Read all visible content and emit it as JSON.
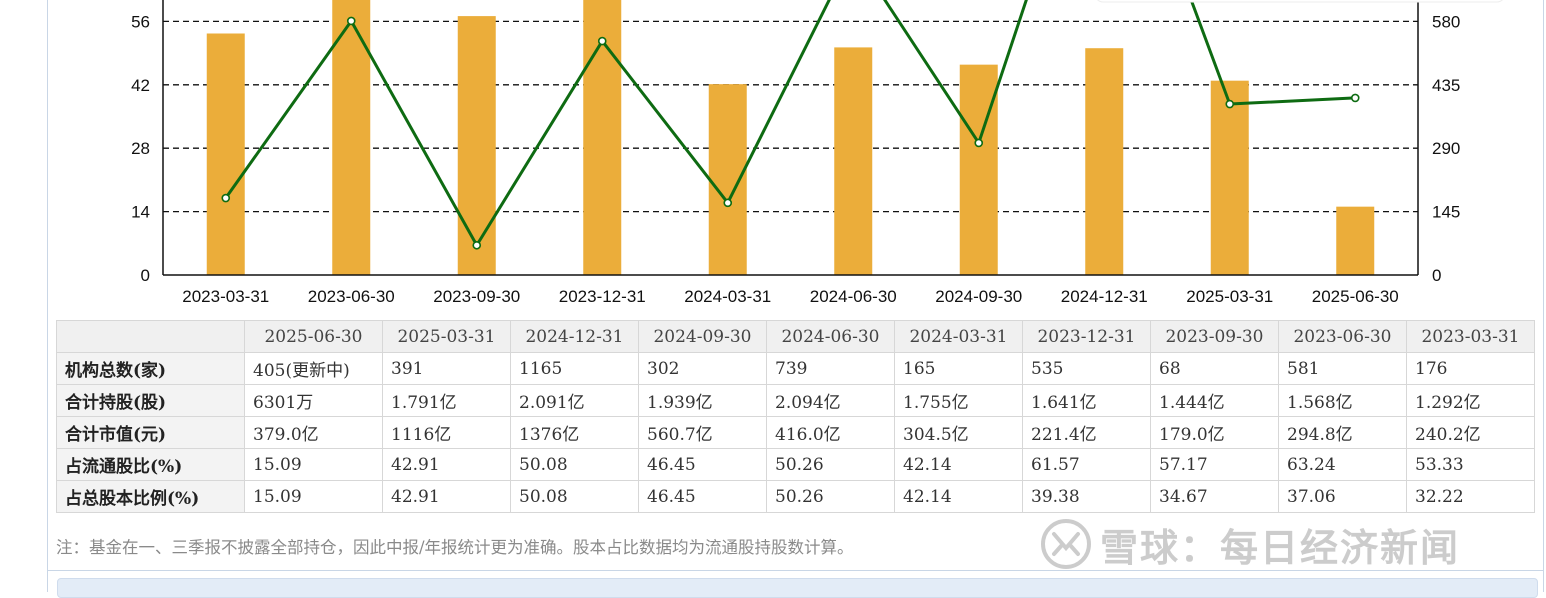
{
  "chart_data": {
    "type": "bar+line",
    "categories": [
      "2023-03-31",
      "2023-06-30",
      "2023-09-30",
      "2023-12-31",
      "2024-03-31",
      "2024-06-30",
      "2024-09-30",
      "2024-12-31",
      "2025-03-31",
      "2025-06-30"
    ],
    "series": [
      {
        "type": "bar",
        "axis": "left",
        "color": "#EBAD3A",
        "values": [
          53.33,
          63.24,
          57.17,
          61.57,
          42.14,
          50.26,
          46.45,
          50.08,
          42.91,
          15.09
        ]
      },
      {
        "type": "line",
        "axis": "right",
        "color": "#0E6B12",
        "values": [
          176,
          581,
          68,
          535,
          165,
          739,
          302,
          1165,
          391,
          405
        ]
      }
    ],
    "y_left": {
      "ticks": [
        0,
        14,
        28,
        42,
        56
      ],
      "range": [
        0,
        70
      ]
    },
    "y_right": {
      "ticks": [
        0,
        145,
        290,
        435,
        580
      ],
      "range": [
        0,
        725
      ]
    },
    "grid": "dashed horizontal"
  },
  "table": {
    "dates": [
      "2025-06-30",
      "2025-03-31",
      "2024-12-31",
      "2024-09-30",
      "2024-06-30",
      "2024-03-31",
      "2023-12-31",
      "2023-09-30",
      "2023-06-30",
      "2023-03-31"
    ],
    "rows": [
      {
        "label": "机构总数(家)",
        "values": [
          "405(更新中)",
          "391",
          "1165",
          "302",
          "739",
          "165",
          "535",
          "68",
          "581",
          "176"
        ]
      },
      {
        "label": "合计持股(股)",
        "values": [
          "6301万",
          "1.791亿",
          "2.091亿",
          "1.939亿",
          "2.094亿",
          "1.755亿",
          "1.641亿",
          "1.444亿",
          "1.568亿",
          "1.292亿"
        ]
      },
      {
        "label": "合计市值(元)",
        "values": [
          "379.0亿",
          "1116亿",
          "1376亿",
          "560.7亿",
          "416.0亿",
          "304.5亿",
          "221.4亿",
          "179.0亿",
          "294.8亿",
          "240.2亿"
        ]
      },
      {
        "label": "占流通股比(%)",
        "values": [
          "15.09",
          "42.91",
          "50.08",
          "46.45",
          "50.26",
          "42.14",
          "61.57",
          "57.17",
          "63.24",
          "53.33"
        ]
      },
      {
        "label": "占总股本比例(%)",
        "values": [
          "15.09",
          "42.91",
          "50.08",
          "46.45",
          "50.26",
          "42.14",
          "39.38",
          "34.67",
          "37.06",
          "32.22"
        ]
      }
    ]
  },
  "note": "注：基金在一、三季报不披露全部持仓，因此中报/年报统计更为准确。股本占比数据均为流通股持股数计算。",
  "watermark": {
    "brand": "雪球",
    "source": "：每日经济新闻"
  }
}
